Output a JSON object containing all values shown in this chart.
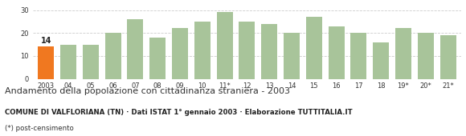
{
  "categories": [
    "2003",
    "04",
    "05",
    "06",
    "07",
    "08",
    "09",
    "10",
    "11*",
    "12",
    "13",
    "14",
    "15",
    "16",
    "17",
    "18",
    "19*",
    "20*",
    "21*"
  ],
  "values": [
    14,
    15,
    15,
    20,
    26,
    18,
    22,
    25,
    29,
    25,
    24,
    20,
    27,
    23,
    20,
    16,
    22,
    20,
    19
  ],
  "bar_color_default": "#a8c49a",
  "bar_color_highlight": "#f07820",
  "highlight_index": 0,
  "highlight_label": "14",
  "ylim": [
    0,
    32
  ],
  "yticks": [
    0,
    10,
    20,
    30
  ],
  "title": "Andamento della popolazione con cittadinanza straniera - 2003",
  "subtitle": "COMUNE DI VALFLORIANA (TN) · Dati ISTAT 1° gennaio 2003 · Elaborazione TUTTITALIA.IT",
  "footnote": "(*) post-censimento",
  "title_fontsize": 8.0,
  "subtitle_fontsize": 6.2,
  "footnote_fontsize": 6.2,
  "tick_fontsize": 6,
  "background_color": "#ffffff",
  "grid_color": "#cccccc"
}
